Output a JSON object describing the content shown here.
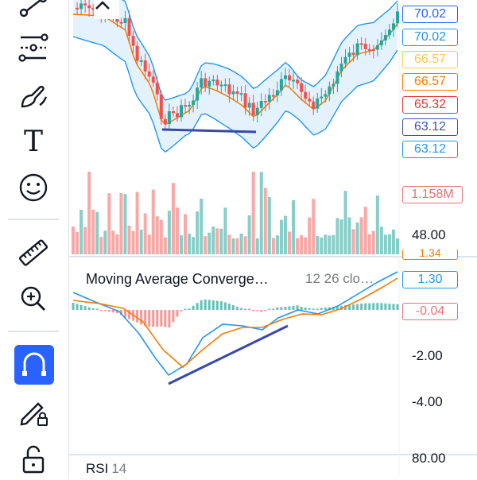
{
  "toolbar": {
    "tools": [
      "trend-line-tool",
      "fib-tool",
      "brush-tool",
      "text-tool",
      "emoji-tool",
      "measure-tool",
      "zoom-in-tool",
      "magnet-tool",
      "lock-drawing-tool",
      "lock-all-tool"
    ],
    "text_tool_glyph": "T",
    "active_tool": "magnet-tool",
    "accent": "#2962ff"
  },
  "price_labels": [
    {
      "value": "70.02",
      "color": "#2962ff"
    },
    {
      "value": "70.02",
      "color": "#2196f3"
    },
    {
      "value": "66.57",
      "color": "#f7c948"
    },
    {
      "value": "66.57",
      "color": "#f57c00"
    },
    {
      "value": "65.32",
      "color": "#e53935"
    },
    {
      "value": "63.12",
      "color": "#3f51b5"
    },
    {
      "value": "63.12",
      "color": "#2196f3"
    }
  ],
  "volume": {
    "label": "1.158M",
    "label_color": "#e57373",
    "axis_value": "48.00"
  },
  "macd": {
    "title": "Moving Average Converge…",
    "params": "12 26 clo…",
    "top_partial_value": "1.34",
    "labels": [
      {
        "value": "1.30",
        "color": "#2196f3"
      },
      {
        "value": "-0.04",
        "color": "#e57373"
      }
    ],
    "axis": [
      "-2.00",
      "-4.00"
    ]
  },
  "rsi": {
    "title": "RSI",
    "params": "14",
    "axis_value": "80.00"
  },
  "colors": {
    "up": "#26a69a",
    "down": "#ef5350",
    "band": "#2196f3",
    "basis": "#f57c00",
    "trendline": "#3949ab"
  }
}
